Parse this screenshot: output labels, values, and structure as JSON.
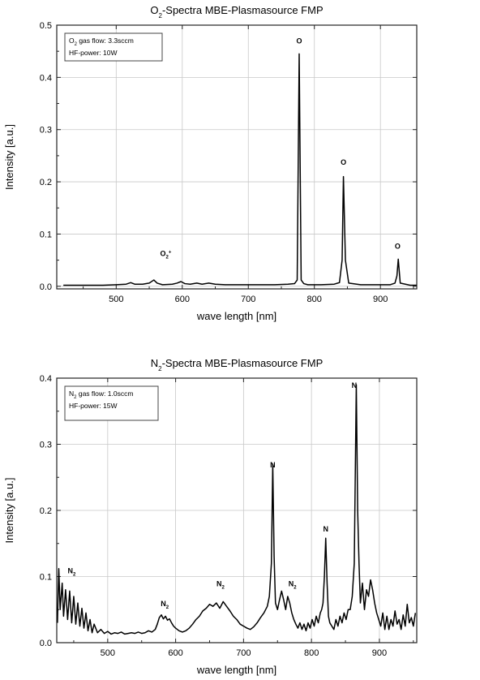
{
  "chart_data": [
    {
      "type": "line",
      "title": {
        "main": "-Spectra MBE-Plasmasource  FMP",
        "species": "O",
        "sub": "2"
      },
      "xlabel": "wave length [nm]",
      "ylabel": "Intensity  [a.u.]",
      "xlim": [
        410,
        955
      ],
      "ylim": [
        -0.005,
        0.5
      ],
      "xticks": [
        500,
        600,
        700,
        800,
        900
      ],
      "yticks": [
        0.0,
        0.1,
        0.2,
        0.3,
        0.4,
        0.5
      ],
      "ytick_labels": [
        "0.0",
        "0.1",
        "0.2",
        "0.3",
        "0.4",
        "0.5"
      ],
      "grid": true,
      "legend": {
        "placement": "top-left",
        "lines": [
          {
            "pre": "O",
            "sub": "2",
            "post": " gas flow: 3.3sccm"
          },
          {
            "pre": "HF-power: 10W",
            "sub": "",
            "post": ""
          }
        ]
      },
      "annotations": [
        {
          "base": "O",
          "sub": "2",
          "sup": "+",
          "x": 575,
          "y": 0.058
        },
        {
          "base": "O",
          "sub": "",
          "sup": "",
          "x": 777,
          "y": 0.465
        },
        {
          "base": "O",
          "sub": "",
          "sup": "",
          "x": 844,
          "y": 0.233
        },
        {
          "base": "O",
          "sub": "",
          "sup": "",
          "x": 926,
          "y": 0.072
        }
      ],
      "series": [
        {
          "x": [
            420,
            450,
            480,
            500,
            515,
            522,
            528,
            540,
            550,
            557,
            562,
            570,
            585,
            592,
            598,
            604,
            612,
            622,
            630,
            640,
            650,
            665,
            680,
            700,
            720,
            740,
            760,
            770,
            774,
            777,
            780,
            784,
            790,
            810,
            830,
            838,
            842,
            844,
            847,
            852,
            870,
            900,
            915,
            922,
            925,
            927,
            930,
            945,
            955
          ],
          "y": [
            0.002,
            0.002,
            0.002,
            0.003,
            0.004,
            0.007,
            0.004,
            0.004,
            0.006,
            0.012,
            0.006,
            0.003,
            0.004,
            0.006,
            0.009,
            0.005,
            0.004,
            0.006,
            0.004,
            0.006,
            0.004,
            0.003,
            0.003,
            0.003,
            0.003,
            0.003,
            0.004,
            0.005,
            0.012,
            0.445,
            0.012,
            0.005,
            0.003,
            0.003,
            0.004,
            0.007,
            0.05,
            0.21,
            0.05,
            0.006,
            0.003,
            0.003,
            0.003,
            0.006,
            0.02,
            0.052,
            0.006,
            0.002,
            0.002
          ]
        }
      ]
    },
    {
      "type": "line",
      "title": {
        "main": "-Spectra MBE-Plasmasource  FMP",
        "species": "N",
        "sub": "2"
      },
      "xlabel": "wave length [nm]",
      "ylabel": "Intensity  [a.u.]",
      "xlim": [
        425,
        955
      ],
      "ylim": [
        0.0,
        0.4
      ],
      "xticks": [
        500,
        600,
        700,
        800,
        900
      ],
      "yticks": [
        0.0,
        0.1,
        0.2,
        0.3,
        0.4
      ],
      "ytick_labels": [
        "0.0",
        "0.1",
        "0.2",
        "0.3",
        "0.4"
      ],
      "grid": true,
      "legend": {
        "placement": "top-left",
        "lines": [
          {
            "pre": "N",
            "sub": "2",
            "post": " gas flow: 1.0sccm"
          },
          {
            "pre": "HF-power: 15W",
            "sub": "",
            "post": ""
          }
        ]
      },
      "annotations": [
        {
          "base": "N",
          "sub": "2",
          "sup": "",
          "x": 447,
          "y": 0.105
        },
        {
          "base": "N",
          "sub": "2",
          "sup": "",
          "x": 584,
          "y": 0.055
        },
        {
          "base": "N",
          "sub": "2",
          "sup": "",
          "x": 666,
          "y": 0.085
        },
        {
          "base": "N",
          "sub": "",
          "sup": "",
          "x": 743,
          "y": 0.265
        },
        {
          "base": "N",
          "sub": "2",
          "sup": "",
          "x": 772,
          "y": 0.085
        },
        {
          "base": "N",
          "sub": "",
          "sup": "",
          "x": 821,
          "y": 0.168
        },
        {
          "base": "N",
          "sub": "",
          "sup": "",
          "x": 863,
          "y": 0.385
        }
      ],
      "series": [
        {
          "x": [
            426,
            428,
            430,
            433,
            435,
            438,
            441,
            444,
            447,
            450,
            453,
            456,
            459,
            462,
            465,
            468,
            471,
            474,
            477,
            480,
            485,
            490,
            495,
            500,
            505,
            510,
            515,
            520,
            525,
            530,
            535,
            540,
            545,
            550,
            555,
            560,
            565,
            570,
            573,
            576,
            579,
            582,
            585,
            588,
            591,
            594,
            597,
            600,
            605,
            610,
            615,
            620,
            625,
            630,
            635,
            640,
            645,
            650,
            655,
            660,
            665,
            670,
            675,
            680,
            685,
            690,
            695,
            700,
            705,
            710,
            715,
            720,
            725,
            730,
            735,
            738,
            741,
            743,
            745,
            747,
            750,
            753,
            756,
            759,
            762,
            765,
            768,
            771,
            774,
            777,
            780,
            783,
            786,
            789,
            792,
            795,
            798,
            801,
            804,
            807,
            810,
            813,
            815,
            817,
            819,
            821,
            823,
            825,
            827,
            830,
            833,
            836,
            839,
            842,
            845,
            848,
            851,
            854,
            857,
            860,
            863,
            866,
            868,
            870,
            872,
            875,
            878,
            881,
            884,
            887,
            890,
            893,
            896,
            899,
            902,
            905,
            908,
            911,
            914,
            917,
            920,
            923,
            926,
            929,
            932,
            935,
            938,
            941,
            944,
            947,
            950,
            953
          ],
          "y": [
            0.03,
            0.112,
            0.05,
            0.09,
            0.04,
            0.08,
            0.035,
            0.078,
            0.03,
            0.07,
            0.028,
            0.06,
            0.025,
            0.052,
            0.022,
            0.045,
            0.018,
            0.035,
            0.015,
            0.028,
            0.015,
            0.02,
            0.014,
            0.017,
            0.013,
            0.015,
            0.014,
            0.016,
            0.013,
            0.014,
            0.015,
            0.014,
            0.016,
            0.014,
            0.015,
            0.018,
            0.016,
            0.02,
            0.028,
            0.038,
            0.042,
            0.036,
            0.04,
            0.034,
            0.036,
            0.03,
            0.025,
            0.022,
            0.018,
            0.016,
            0.018,
            0.022,
            0.028,
            0.035,
            0.04,
            0.048,
            0.052,
            0.058,
            0.055,
            0.06,
            0.052,
            0.062,
            0.055,
            0.048,
            0.04,
            0.035,
            0.028,
            0.025,
            0.022,
            0.02,
            0.024,
            0.03,
            0.038,
            0.045,
            0.055,
            0.07,
            0.12,
            0.27,
            0.13,
            0.06,
            0.05,
            0.065,
            0.078,
            0.065,
            0.05,
            0.07,
            0.06,
            0.045,
            0.035,
            0.028,
            0.022,
            0.03,
            0.02,
            0.028,
            0.018,
            0.03,
            0.022,
            0.035,
            0.025,
            0.04,
            0.03,
            0.045,
            0.05,
            0.06,
            0.1,
            0.158,
            0.09,
            0.04,
            0.03,
            0.025,
            0.02,
            0.035,
            0.025,
            0.04,
            0.03,
            0.045,
            0.035,
            0.05,
            0.05,
            0.07,
            0.12,
            0.39,
            0.2,
            0.12,
            0.06,
            0.09,
            0.05,
            0.08,
            0.07,
            0.095,
            0.08,
            0.06,
            0.045,
            0.035,
            0.025,
            0.045,
            0.02,
            0.04,
            0.02,
            0.035,
            0.025,
            0.048,
            0.028,
            0.035,
            0.02,
            0.042,
            0.025,
            0.058,
            0.03,
            0.038,
            0.025,
            0.045
          ]
        }
      ]
    }
  ]
}
